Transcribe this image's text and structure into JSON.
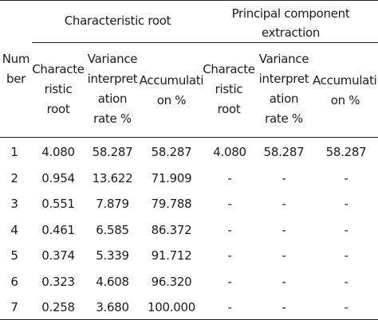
{
  "table": {
    "group_headers": {
      "characteristic_root": "Characteristic root",
      "principal_component_extraction": [
        "Principal component",
        "extraction"
      ]
    },
    "column_headers": {
      "number": [
        "Num",
        "ber"
      ],
      "char_root_1": [
        "Characte",
        "ristic",
        "root"
      ],
      "variance_1": [
        "Variance",
        "interpret",
        "ation",
        "rate %"
      ],
      "accum_1": [
        "Accumulati",
        "on %"
      ],
      "char_root_2": [
        "Characte",
        "ristic",
        "root"
      ],
      "variance_2": [
        "Variance",
        "interpret",
        "ation",
        "rate %"
      ],
      "accum_2": [
        "Accumulati",
        "on %"
      ]
    },
    "rows": [
      [
        "1",
        "4.080",
        "58.287",
        "58.287",
        "4.080",
        "58.287",
        "58.287"
      ],
      [
        "2",
        "0.954",
        "13.622",
        "71.909",
        "-",
        "-",
        "-"
      ],
      [
        "3",
        "0.551",
        "7.879",
        "79.788",
        "-",
        "-",
        "-"
      ],
      [
        "4",
        "0.461",
        "6.585",
        "86.372",
        "-",
        "-",
        "-"
      ],
      [
        "5",
        "0.374",
        "5.339",
        "91.712",
        "-",
        "-",
        "-"
      ],
      [
        "6",
        "0.323",
        "4.608",
        "96.320",
        "-",
        "-",
        "-"
      ],
      [
        "7",
        "0.258",
        "3.680",
        "100.000",
        "-",
        "-",
        "-"
      ]
    ]
  }
}
